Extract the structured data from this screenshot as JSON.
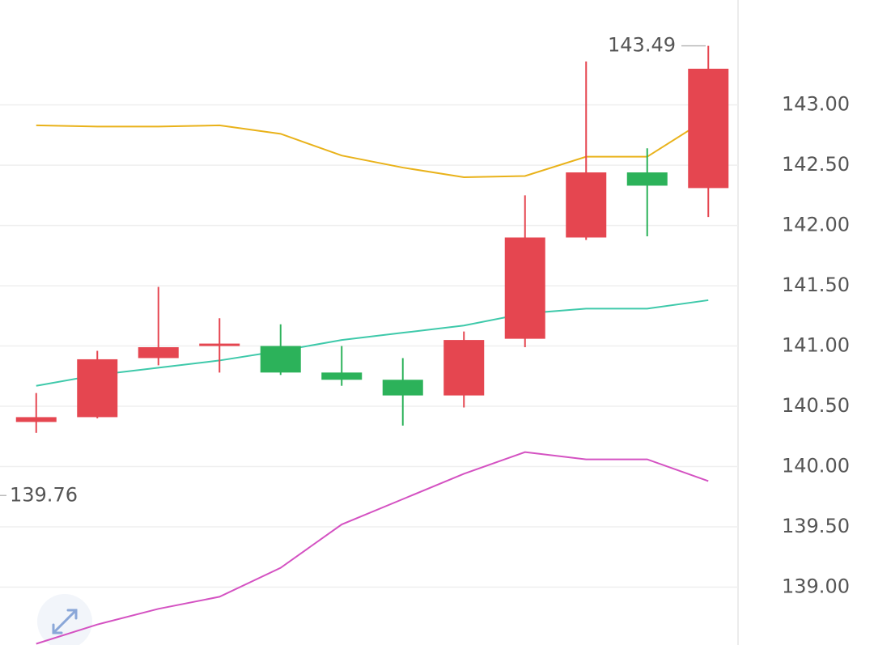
{
  "chart_data": {
    "type": "candlestick",
    "categories": [
      null,
      null,
      null,
      null,
      null,
      null,
      null,
      null,
      null,
      null,
      null,
      null
    ],
    "open": [
      140.37,
      140.41,
      140.9,
      141.0,
      141.0,
      140.78,
      140.72,
      140.59,
      141.06,
      141.9,
      142.44,
      142.31
    ],
    "high": [
      140.61,
      140.96,
      141.49,
      141.23,
      141.18,
      141.0,
      140.9,
      141.12,
      142.25,
      143.36,
      142.64,
      143.49
    ],
    "low": [
      140.28,
      140.4,
      140.84,
      140.78,
      140.76,
      140.67,
      140.34,
      140.49,
      140.99,
      141.88,
      141.91,
      142.07
    ],
    "close": [
      140.41,
      140.89,
      140.99,
      141.02,
      140.78,
      140.72,
      140.59,
      141.05,
      141.9,
      142.44,
      142.33,
      143.3
    ],
    "up_color": "#e54650",
    "down_color": "#2cb25a",
    "lines": [
      {
        "color": "#e9b21a",
        "values": [
          142.83,
          142.82,
          142.82,
          142.83,
          142.76,
          142.58,
          142.48,
          142.4,
          142.41,
          142.57,
          142.57,
          142.89
        ]
      },
      {
        "color": "#3ec9aa",
        "values": [
          140.67,
          140.76,
          140.82,
          140.88,
          140.96,
          141.05,
          141.11,
          141.17,
          141.27,
          141.31,
          141.31,
          141.38
        ]
      },
      {
        "color": "#d452c2",
        "values": [
          138.53,
          138.69,
          138.82,
          138.92,
          139.16,
          139.52,
          139.73,
          139.94,
          140.12,
          140.06,
          140.06,
          139.88
        ]
      }
    ],
    "annotations": [
      {
        "value": 143.49,
        "label": "143.49"
      },
      {
        "value": 139.76,
        "label": "139.76"
      }
    ],
    "ylim": [
      138.52,
      143.87
    ],
    "yticks": [
      {
        "value": 139,
        "label": "139.00"
      },
      {
        "value": 139.5,
        "label": "139.50"
      },
      {
        "value": 140,
        "label": "140.00"
      },
      {
        "value": 140.5,
        "label": "140.50"
      },
      {
        "value": 141,
        "label": "141.00"
      },
      {
        "value": 141.5,
        "label": "141.50"
      },
      {
        "value": 142,
        "label": "142.00"
      },
      {
        "value": 142.5,
        "label": "142.50"
      },
      {
        "value": 143,
        "label": "143.00"
      }
    ],
    "grid": true
  }
}
